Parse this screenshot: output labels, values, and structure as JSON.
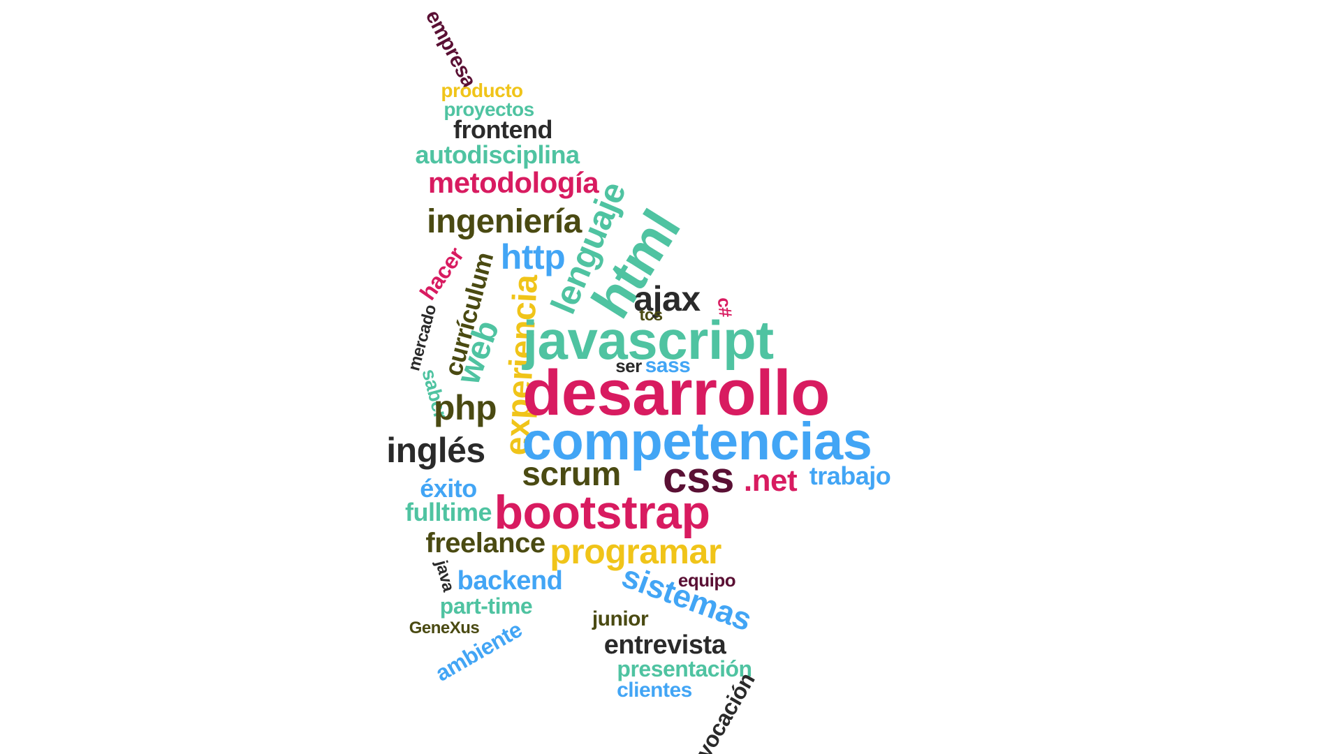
{
  "palette": {
    "pink": "#d81b60",
    "teal": "#4fc3a1",
    "blue": "#42a5f5",
    "yellow": "#f0c419",
    "olive": "#4a4a12",
    "dark": "#2a2a2a",
    "maroon": "#5a1034"
  },
  "words": [
    {
      "text": "empresa",
      "color": "maroon"
    },
    {
      "text": "producto",
      "color": "yellow"
    },
    {
      "text": "proyectos",
      "color": "teal"
    },
    {
      "text": "frontend",
      "color": "dark"
    },
    {
      "text": "autodisciplina",
      "color": "teal"
    },
    {
      "text": "metodología",
      "color": "pink"
    },
    {
      "text": "ingeniería",
      "color": "olive"
    },
    {
      "text": "lenguaje",
      "color": "teal"
    },
    {
      "text": "html",
      "color": "teal"
    },
    {
      "text": "http",
      "color": "blue"
    },
    {
      "text": "hacer",
      "color": "pink"
    },
    {
      "text": "currículum",
      "color": "olive"
    },
    {
      "text": "experiencia",
      "color": "yellow"
    },
    {
      "text": "ajax",
      "color": "dark"
    },
    {
      "text": "c#",
      "color": "pink"
    },
    {
      "text": "tcs",
      "color": "olive"
    },
    {
      "text": "mercado",
      "color": "dark"
    },
    {
      "text": "web",
      "color": "teal"
    },
    {
      "text": "javascript",
      "color": "teal"
    },
    {
      "text": "ser",
      "color": "dark"
    },
    {
      "text": "sass",
      "color": "blue"
    },
    {
      "text": "saber",
      "color": "teal"
    },
    {
      "text": "desarrollo",
      "color": "pink"
    },
    {
      "text": "php",
      "color": "olive"
    },
    {
      "text": "inglés",
      "color": "dark"
    },
    {
      "text": "competencias",
      "color": "blue"
    },
    {
      "text": "scrum",
      "color": "olive"
    },
    {
      "text": "css",
      "color": "maroon"
    },
    {
      "text": ".net",
      "color": "pink"
    },
    {
      "text": "trabajo",
      "color": "blue"
    },
    {
      "text": "éxito",
      "color": "blue"
    },
    {
      "text": "bootstrap",
      "color": "pink"
    },
    {
      "text": "fulltime",
      "color": "teal"
    },
    {
      "text": "freelance",
      "color": "olive"
    },
    {
      "text": "programar",
      "color": "yellow"
    },
    {
      "text": "java",
      "color": "dark"
    },
    {
      "text": "backend",
      "color": "blue"
    },
    {
      "text": "equipo",
      "color": "maroon"
    },
    {
      "text": "sistemas",
      "color": "blue"
    },
    {
      "text": "part-time",
      "color": "teal"
    },
    {
      "text": "junior",
      "color": "olive"
    },
    {
      "text": "GeneXus",
      "color": "olive"
    },
    {
      "text": "ambiente",
      "color": "blue"
    },
    {
      "text": "entrevista",
      "color": "dark"
    },
    {
      "text": "presentación",
      "color": "teal"
    },
    {
      "text": "clientes",
      "color": "blue"
    },
    {
      "text": "vocación",
      "color": "dark"
    }
  ]
}
